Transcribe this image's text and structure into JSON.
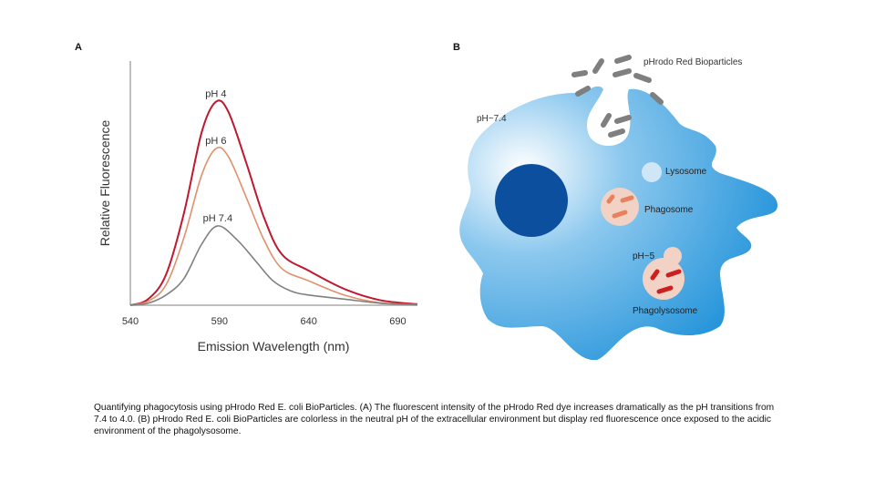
{
  "panels": {
    "a_label": "A",
    "b_label": "B"
  },
  "chart_data": {
    "type": "line",
    "title": "",
    "xlabel": "Emission Wavelength (nm)",
    "ylabel": "Relative Fluorescence",
    "xlim": [
      540,
      701
    ],
    "ylim": [
      0,
      1.2
    ],
    "xticks": [
      540,
      590,
      640,
      690
    ],
    "grid": false,
    "legend": "inline labels at peaks",
    "series": [
      {
        "name": "pH 4",
        "color": "#c0182e",
        "x": [
          540,
          550,
          560,
          570,
          580,
          588,
          595,
          605,
          615,
          625,
          640,
          660,
          680,
          701
        ],
        "y": [
          0,
          0.03,
          0.15,
          0.45,
          0.85,
          1.0,
          0.95,
          0.7,
          0.43,
          0.25,
          0.17,
          0.08,
          0.025,
          0.005
        ]
      },
      {
        "name": "pH 6",
        "color": "#e0906a",
        "x": [
          540,
          550,
          560,
          570,
          580,
          588,
          595,
          605,
          615,
          625,
          640,
          660,
          680,
          701
        ],
        "y": [
          0,
          0.02,
          0.1,
          0.33,
          0.64,
          0.77,
          0.73,
          0.53,
          0.32,
          0.18,
          0.12,
          0.05,
          0.012,
          0.003
        ]
      },
      {
        "name": "pH 7.4",
        "color": "#808080",
        "x": [
          540,
          550,
          560,
          570,
          580,
          589,
          600,
          610,
          620,
          630,
          640,
          660,
          680,
          701
        ],
        "y": [
          0,
          0.01,
          0.05,
          0.13,
          0.3,
          0.39,
          0.32,
          0.22,
          0.12,
          0.07,
          0.05,
          0.03,
          0.01,
          0.002
        ]
      }
    ]
  },
  "diagram": {
    "bioparticles_label": "pHrodo Red Bioparticles",
    "extracellular_ph": "pH~7.4",
    "lysosome_label": "Lysosome",
    "phagosome_label": "Phagosome",
    "phagolysosome_ph": "pH~5",
    "phagolysosome_label": "Phagolysosome",
    "colors": {
      "cell": "#1a8fd8",
      "nucleus": "#0b4f9e",
      "particle_neutral": "#7f7f7f",
      "particle_phagosome": "#e8825e",
      "particle_acidic": "#cc1f1f"
    }
  },
  "caption": "Quantifying phagocytosis using pHrodo Red E. coli BioParticles. (A) The fluorescent intensity of the pHrodo Red dye increases dramatically as the pH transitions from 7.4 to 4.0. (B) pHrodo Red E. coli BioParticles are colorless in the neutral pH of the extracellular environment but display red fluorescence once exposed to the acidic environment of the phagolysosome."
}
